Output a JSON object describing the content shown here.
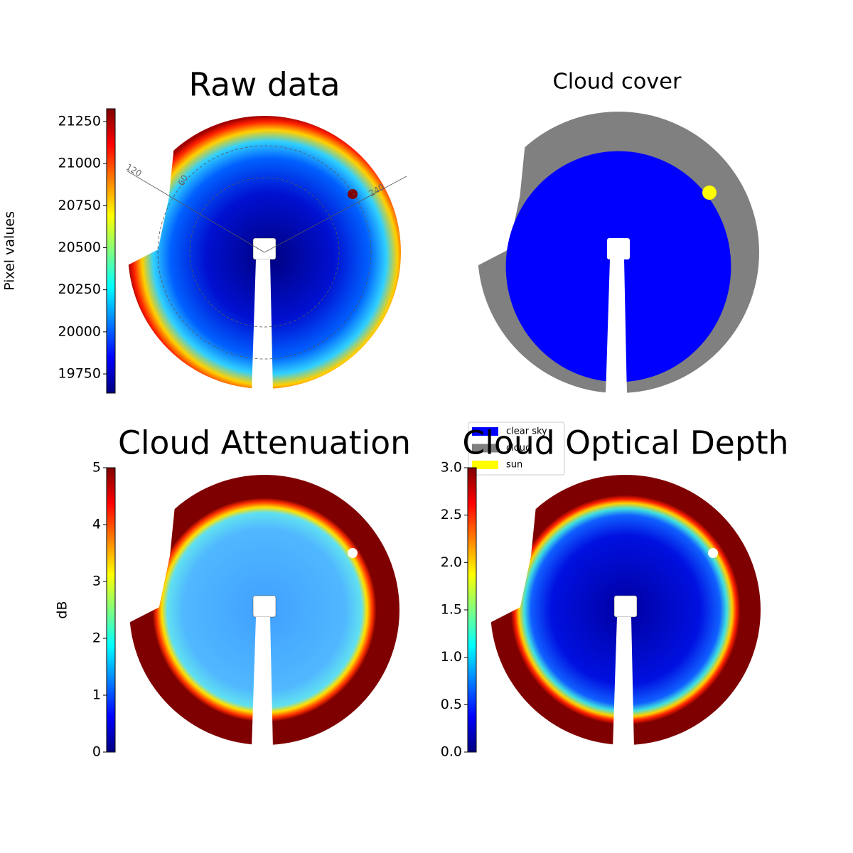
{
  "chart_data": [
    {
      "type": "image",
      "title": "Raw data",
      "colorbar_label": "Pixel values",
      "colormap": "jet",
      "clim": [
        19636,
        21326
      ],
      "cticks": [
        19750,
        20000,
        20250,
        20500,
        20750,
        21000,
        21250
      ],
      "annotations": [
        "120",
        "60",
        "240"
      ]
    },
    {
      "type": "mask",
      "title": "Cloud cover",
      "series": [
        {
          "name": "clear sky",
          "color": "#0000ff"
        },
        {
          "name": "cloud",
          "color": "#808080"
        },
        {
          "name": "sun",
          "color": "#ffff00"
        }
      ]
    },
    {
      "type": "image",
      "title": "Cloud Attenuation",
      "colorbar_label": "dB",
      "colormap": "jet",
      "clim": [
        0,
        5
      ],
      "cticks": [
        0,
        1,
        2,
        3,
        4,
        5
      ]
    },
    {
      "type": "image",
      "title": "Cloud Optical Depth",
      "colormap": "jet",
      "clim": [
        0,
        3
      ],
      "cticks": [
        {
          "value": 0,
          "label": "0.0"
        },
        {
          "value": 0.5,
          "label": "0.5"
        },
        {
          "value": 1,
          "label": "1.0"
        },
        {
          "value": 1.5,
          "label": "1.5"
        },
        {
          "value": 2,
          "label": "2.0"
        },
        {
          "value": 2.5,
          "label": "2.5"
        },
        {
          "value": 3,
          "label": "3.0"
        }
      ]
    }
  ]
}
